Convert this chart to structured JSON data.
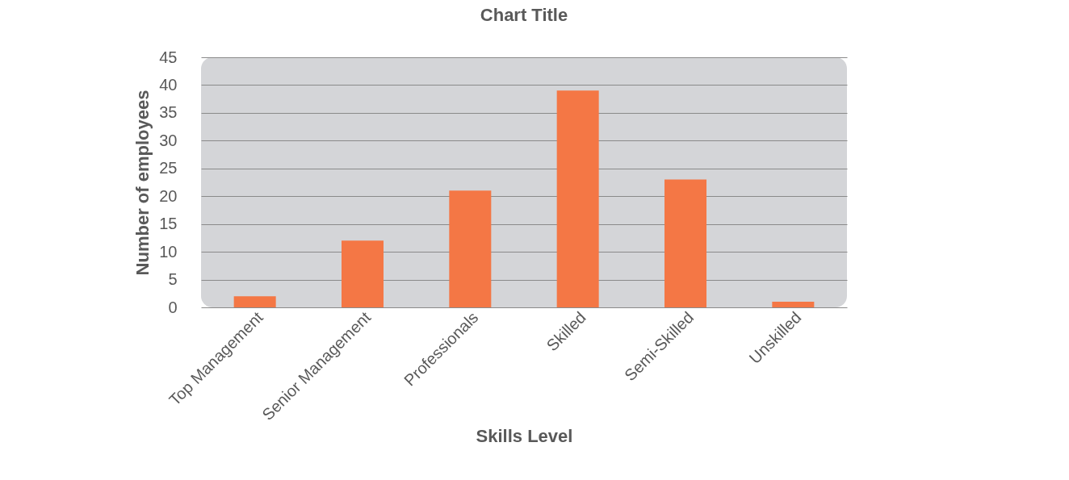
{
  "chart_data": {
    "type": "bar",
    "title": "Chart Title",
    "xlabel": "Skills Level",
    "ylabel": "Number of employees",
    "categories": [
      "Top Management",
      "Senior Management",
      "Professionals",
      "Skilled",
      "Semi-Skilled",
      "Unskilled"
    ],
    "values": [
      2,
      12,
      21,
      39,
      23,
      1
    ],
    "color": "#f47745",
    "ylim": [
      0,
      45
    ],
    "yticks": [
      0,
      5,
      10,
      15,
      20,
      25,
      30,
      35,
      40,
      45
    ],
    "grid": "y"
  }
}
